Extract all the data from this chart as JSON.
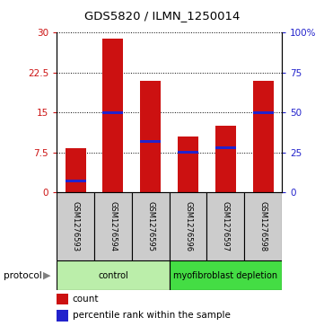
{
  "title": "GDS5820 / ILMN_1250014",
  "samples": [
    "GSM1276593",
    "GSM1276594",
    "GSM1276595",
    "GSM1276596",
    "GSM1276597",
    "GSM1276598"
  ],
  "count_values": [
    8.3,
    28.8,
    21.0,
    10.5,
    12.5,
    21.0
  ],
  "percentile_values": [
    7,
    50,
    32,
    25,
    28,
    50
  ],
  "ylim_left": [
    0,
    30
  ],
  "ylim_right": [
    0,
    100
  ],
  "yticks_left": [
    0,
    7.5,
    15,
    22.5,
    30
  ],
  "ytick_labels_left": [
    "0",
    "7.5",
    "15",
    "22.5",
    "30"
  ],
  "yticks_right": [
    0,
    25,
    50,
    75,
    100
  ],
  "ytick_labels_right": [
    "0",
    "25",
    "50",
    "75",
    "100%"
  ],
  "bar_color": "#cc1111",
  "blue_color": "#2222cc",
  "bar_width": 0.55,
  "protocol_groups": [
    {
      "label": "control",
      "start": 0,
      "end": 3,
      "color": "#bbeeaa"
    },
    {
      "label": "myofibroblast depletion",
      "start": 3,
      "end": 6,
      "color": "#44dd44"
    }
  ],
  "legend_count_label": "count",
  "legend_pct_label": "percentile rank within the sample",
  "protocol_label": "protocol",
  "background_color": "#ffffff",
  "plot_bg_color": "#ffffff",
  "grid_color": "#000000",
  "tick_label_color_left": "#cc1111",
  "tick_label_color_right": "#2222cc",
  "sample_box_color": "#cccccc",
  "title_fontsize": 9.5
}
